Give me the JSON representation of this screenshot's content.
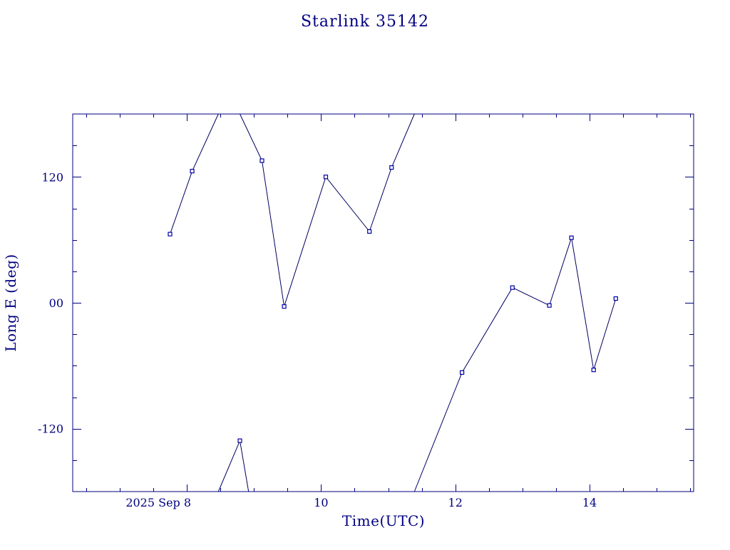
{
  "chart_data": {
    "type": "line",
    "title": "Starlink 35142",
    "xlabel": "Time(UTC)",
    "ylabel": "Long E (deg)",
    "xlim": [
      6.3,
      15.55
    ],
    "ylim": [
      -180,
      180
    ],
    "x_tick_labels": [
      {
        "value": 8,
        "label": "2025 Sep  8"
      },
      {
        "value": 10,
        "label": "10"
      },
      {
        "value": 12,
        "label": "12"
      },
      {
        "value": 14,
        "label": "14"
      }
    ],
    "y_tick_labels": [
      {
        "value": 120,
        "label": "120"
      },
      {
        "value": 0,
        "label": "00"
      },
      {
        "value": -120,
        "label": "-120"
      }
    ],
    "x_minor_step": 0.5,
    "y_minor_step": 30,
    "series": [
      {
        "points": [
          {
            "x": 7.75,
            "y": 65.5
          },
          {
            "x": 8.08,
            "y": 125.5
          },
          {
            "x": 9.12,
            "y": 135.5
          },
          {
            "x": 9.45,
            "y": -3.5
          },
          {
            "x": 10.07,
            "y": 120.0
          },
          {
            "x": 10.72,
            "y": 68.0
          },
          {
            "x": 11.05,
            "y": 129.0
          },
          {
            "x": 12.1,
            "y": -66.5
          },
          {
            "x": 12.85,
            "y": 14.5
          },
          {
            "x": 13.4,
            "y": -2.5
          },
          {
            "x": 13.73,
            "y": 62.0
          },
          {
            "x": 14.06,
            "y": -64.0
          },
          {
            "x": 14.39,
            "y": 4.0
          }
        ],
        "segments": [
          [
            {
              "x": 7.75,
              "y": 65.5
            },
            {
              "x": 8.08,
              "y": 125.5
            },
            {
              "x": 8.47,
              "y": 180.0
            }
          ],
          [
            {
              "x": 8.79,
              "y": 180.0
            },
            {
              "x": 9.12,
              "y": 135.5
            },
            {
              "x": 9.45,
              "y": -3.5
            },
            {
              "x": 10.07,
              "y": 120.0
            },
            {
              "x": 10.72,
              "y": 68.0
            },
            {
              "x": 11.05,
              "y": 129.0
            },
            {
              "x": 11.39,
              "y": 180.0
            }
          ],
          [
            {
              "x": 11.39,
              "y": -180.0
            },
            {
              "x": 12.1,
              "y": -66.5
            },
            {
              "x": 12.85,
              "y": 14.5
            },
            {
              "x": 13.4,
              "y": -2.5
            },
            {
              "x": 13.73,
              "y": 62.0
            },
            {
              "x": 14.06,
              "y": -64.0
            },
            {
              "x": 14.39,
              "y": 4.0
            }
          ],
          [
            {
              "x": 8.47,
              "y": -180.0
            },
            {
              "x": 8.79,
              "y": -131.5
            },
            {
              "x": 8.92,
              "y": -180.0
            }
          ]
        ],
        "extra_markers": [
          {
            "x": 8.79,
            "y": -131.5
          }
        ]
      }
    ],
    "grid": false,
    "colors": {
      "axis": "#000080",
      "text": "#000080",
      "line": "#000060",
      "marker": "#0000aa"
    }
  }
}
